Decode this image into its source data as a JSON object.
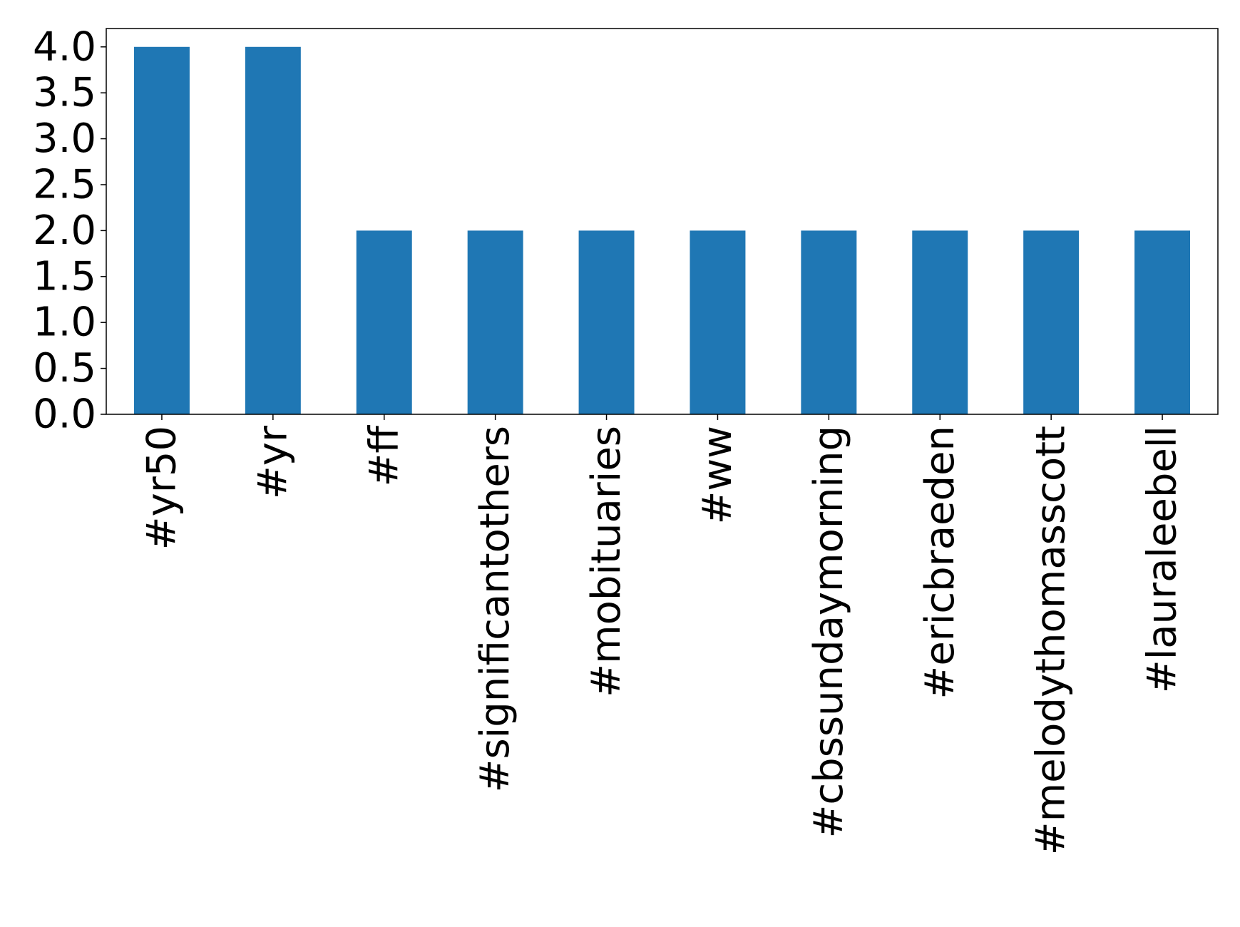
{
  "chart_data": {
    "type": "bar",
    "categories": [
      "#yr50",
      "#yr",
      "#ff",
      "#significantothers",
      "#mobituaries",
      "#ww",
      "#cbssundaymorning",
      "#ericbraeden",
      "#melodythomasscott",
      "#lauraleebell"
    ],
    "values": [
      4,
      4,
      2,
      2,
      2,
      2,
      2,
      2,
      2,
      2
    ],
    "color": "#1f77b4",
    "ylim": [
      0,
      4.2
    ],
    "yticks": [
      {
        "value": 0,
        "label": "0.0"
      },
      {
        "value": 0.5,
        "label": "0.5"
      },
      {
        "value": 1,
        "label": "1.0"
      },
      {
        "value": 1.5,
        "label": "1.5"
      },
      {
        "value": 2,
        "label": "2.0"
      },
      {
        "value": 2.5,
        "label": "2.5"
      },
      {
        "value": 3,
        "label": "3.0"
      },
      {
        "value": 3.5,
        "label": "3.5"
      },
      {
        "value": 4,
        "label": "4.0"
      }
    ],
    "grid": false
  }
}
